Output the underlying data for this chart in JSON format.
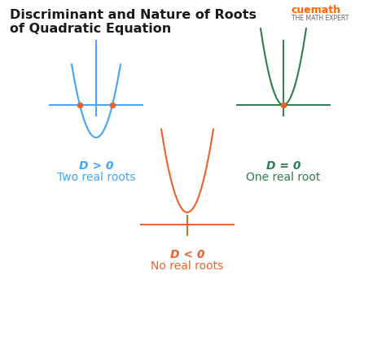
{
  "title_line1": "Discriminant and Nature of Roots",
  "title_line2": "of Quadratic Equation",
  "title_fontsize": 11.5,
  "title_color": "#1a1a1a",
  "bg_color": "#ffffff",
  "blue_color": "#42A5F5",
  "green_color": "#2E7D4F",
  "orange_color": "#E8622A",
  "dot_color": "#E8622A",
  "label1_line1": "D > 0",
  "label1_line2": "Two real roots",
  "label2_line1": "D = 0",
  "label2_line2": "One real root",
  "label3_line1": "D < 0",
  "label3_line2": "No real roots",
  "label_fontsize": 10,
  "cuemath_color": "#FF6600",
  "cuemath_sub_color": "#666666"
}
